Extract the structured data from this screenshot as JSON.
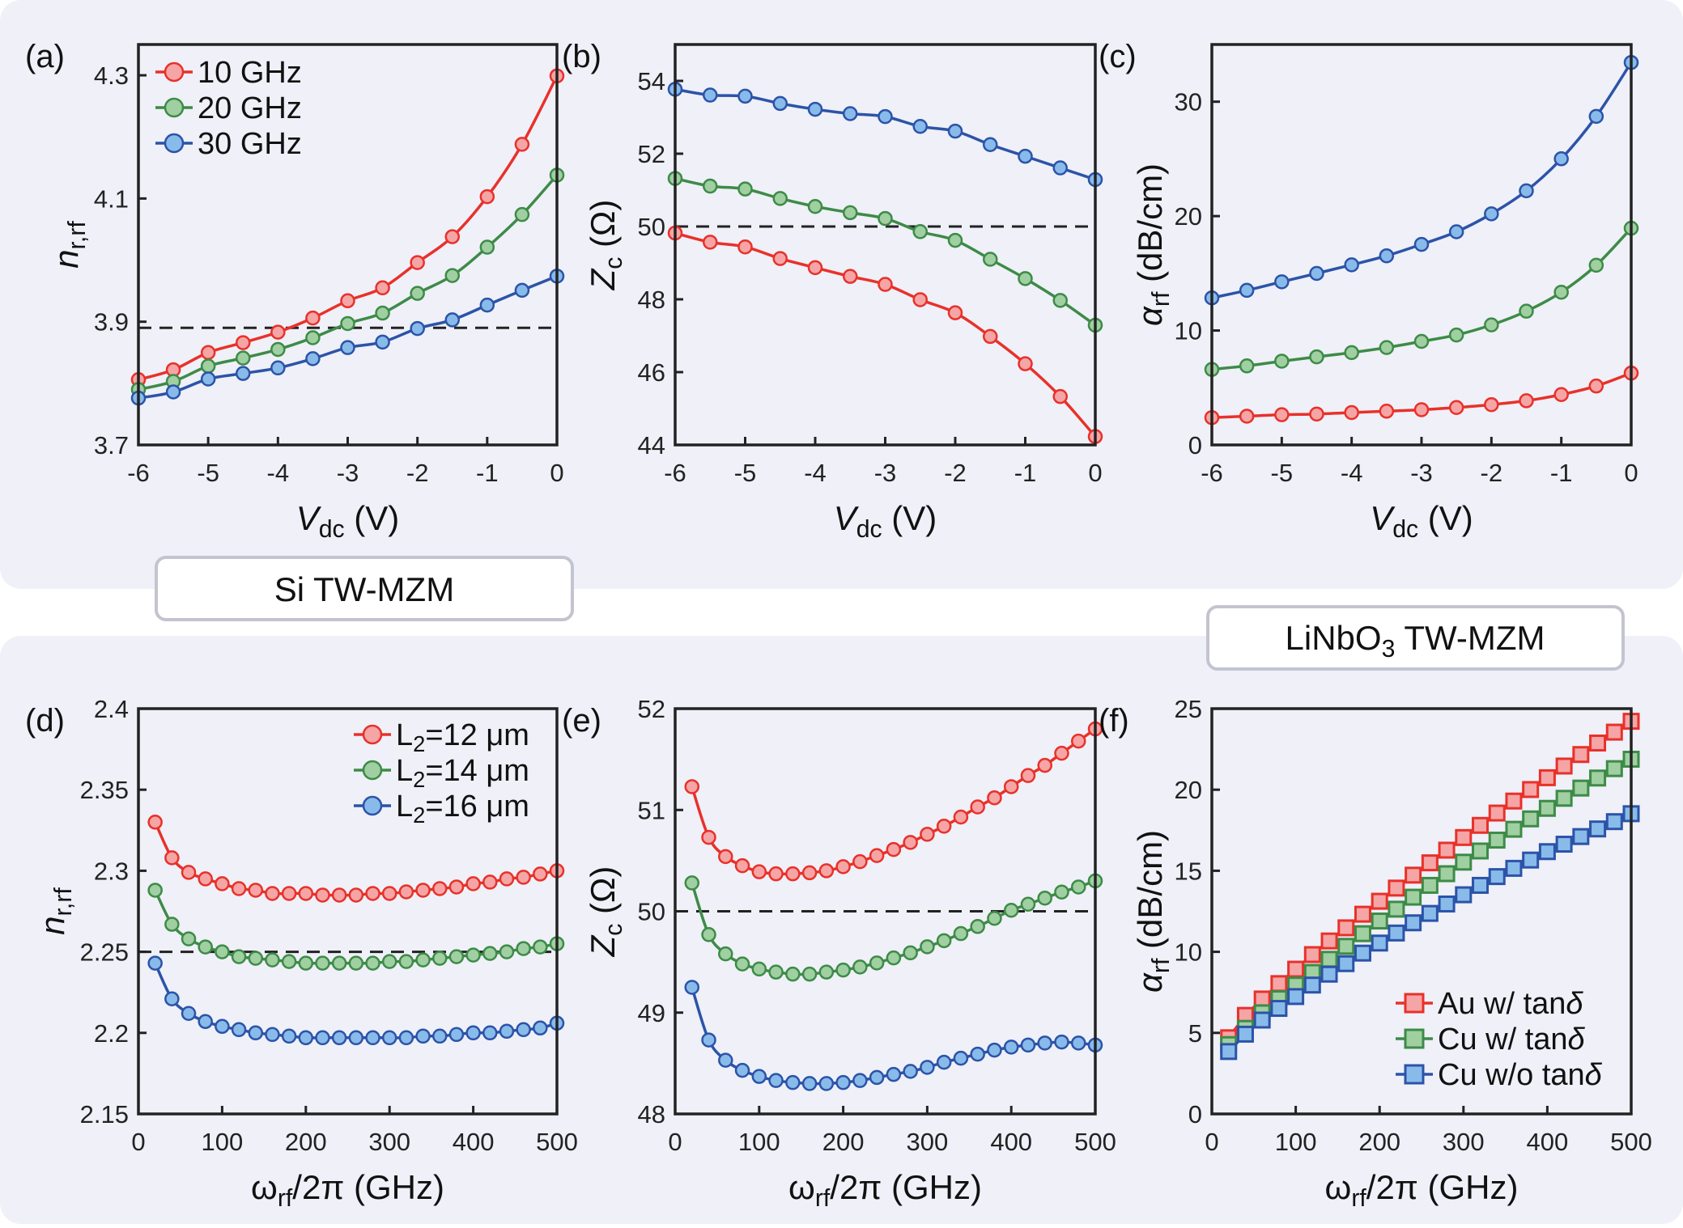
{
  "section_labels": {
    "top": [
      {
        "t": "Si TW-MZM"
      }
    ],
    "bottom": [
      {
        "t": "LiNbO"
      },
      {
        "t": "3",
        "sub": true
      },
      {
        "t": " TW-MZM"
      }
    ]
  },
  "colors": {
    "background_panel": "#eff0f8",
    "label_box_border": "#c3c4d0",
    "red_line": "#e8312a",
    "red_fill": "#f5a5a5",
    "green_line": "#3d8b47",
    "green_fill": "#a0cfa2",
    "blue_line": "#2c53a8",
    "blue_fill": "#88bbea"
  },
  "chart_data": [
    {
      "panel": "(a)",
      "type": "line",
      "marker": "circle",
      "xlabel": [
        {
          "t": "V",
          "i": true
        },
        {
          "t": "dc",
          "sub": true
        },
        {
          "t": " (V)"
        }
      ],
      "ylabel": [
        {
          "t": "n",
          "i": true
        },
        {
          "t": "r,rf",
          "sub": true
        }
      ],
      "xlim": [
        -6,
        0
      ],
      "ylim": [
        3.7,
        4.35
      ],
      "xticks": [
        -6,
        -5,
        -4,
        -3,
        -2,
        -1,
        0
      ],
      "xtick_labels": [
        "-6",
        "-5",
        "-4",
        "-3",
        "-2",
        "-1",
        "0"
      ],
      "yticks": [
        3.7,
        3.9,
        4.1,
        4.3
      ],
      "ytick_labels": [
        "3.7",
        "3.9",
        "4.1",
        "4.3"
      ],
      "reference_line": 3.89,
      "legend_placement": "top-left",
      "grid": false,
      "x": [
        -6,
        -5.5,
        -5,
        -4.5,
        -4,
        -3.5,
        -3,
        -2.5,
        -2,
        -1.5,
        -1,
        -0.5,
        0
      ],
      "series": [
        {
          "name": [
            {
              "t": "10 GHz"
            }
          ],
          "color": "red",
          "values": [
            3.806,
            3.822,
            3.85,
            3.866,
            3.883,
            3.906,
            3.934,
            3.955,
            3.996,
            4.038,
            4.103,
            4.188,
            4.299
          ]
        },
        {
          "name": [
            {
              "t": "20 GHz"
            }
          ],
          "color": "green",
          "values": [
            3.79,
            3.803,
            3.828,
            3.841,
            3.855,
            3.874,
            3.897,
            3.914,
            3.946,
            3.975,
            4.021,
            4.074,
            4.138
          ]
        },
        {
          "name": [
            {
              "t": "30 GHz"
            }
          ],
          "color": "blue",
          "values": [
            3.776,
            3.786,
            3.807,
            3.816,
            3.825,
            3.84,
            3.858,
            3.867,
            3.889,
            3.903,
            3.927,
            3.951,
            3.974
          ]
        }
      ]
    },
    {
      "panel": "(b)",
      "type": "line",
      "marker": "circle",
      "xlabel": [
        {
          "t": "V",
          "i": true
        },
        {
          "t": "dc",
          "sub": true
        },
        {
          "t": " (V)"
        }
      ],
      "ylabel": [
        {
          "t": "Z",
          "i": true
        },
        {
          "t": "c",
          "sub": true
        },
        {
          "t": " (Ω)"
        }
      ],
      "xlim": [
        -6,
        0
      ],
      "ylim": [
        44,
        55
      ],
      "xticks": [
        -6,
        -5,
        -4,
        -3,
        -2,
        -1,
        0
      ],
      "xtick_labels": [
        "-6",
        "-5",
        "-4",
        "-3",
        "-2",
        "-1",
        "0"
      ],
      "yticks": [
        44,
        46,
        48,
        50,
        52,
        54
      ],
      "ytick_labels": [
        "44",
        "46",
        "48",
        "50",
        "52",
        "54"
      ],
      "reference_line": 50,
      "grid": false,
      "x": [
        -6,
        -5.5,
        -5,
        -4.5,
        -4,
        -3.5,
        -3,
        -2.5,
        -2,
        -1.5,
        -1,
        -0.5,
        0
      ],
      "series": [
        {
          "color": "blue",
          "values": [
            53.77,
            53.61,
            53.58,
            53.38,
            53.22,
            53.1,
            53.02,
            52.75,
            52.62,
            52.25,
            51.93,
            51.61,
            51.29
          ]
        },
        {
          "color": "green",
          "values": [
            51.32,
            51.11,
            51.03,
            50.77,
            50.55,
            50.38,
            50.22,
            49.86,
            49.62,
            49.1,
            48.57,
            47.97,
            47.29
          ]
        },
        {
          "color": "red",
          "values": [
            49.82,
            49.57,
            49.44,
            49.12,
            48.87,
            48.63,
            48.41,
            47.99,
            47.63,
            46.98,
            46.23,
            45.33,
            44.23
          ]
        }
      ]
    },
    {
      "panel": "(c)",
      "type": "line",
      "marker": "circle",
      "xlabel": [
        {
          "t": "V",
          "i": true
        },
        {
          "t": "dc",
          "sub": true
        },
        {
          "t": " (V)"
        }
      ],
      "ylabel": [
        {
          "t": "α",
          "i": true
        },
        {
          "t": "rf",
          "sub": true
        },
        {
          "t": " (dB/cm)"
        }
      ],
      "xlim": [
        -6,
        0
      ],
      "ylim": [
        0,
        35
      ],
      "xticks": [
        -6,
        -5,
        -4,
        -3,
        -2,
        -1,
        0
      ],
      "xtick_labels": [
        "-6",
        "-5",
        "-4",
        "-3",
        "-2",
        "-1",
        "0"
      ],
      "yticks": [
        0,
        10,
        20,
        30
      ],
      "ytick_labels": [
        "0",
        "10",
        "20",
        "30"
      ],
      "grid": false,
      "x": [
        -6,
        -5.5,
        -5,
        -4.5,
        -4,
        -3.5,
        -3,
        -2.5,
        -2,
        -1.5,
        -1,
        -0.5,
        0
      ],
      "series": [
        {
          "color": "blue",
          "values": [
            12.85,
            13.51,
            14.26,
            14.99,
            15.74,
            16.53,
            17.53,
            18.63,
            20.2,
            22.21,
            25.01,
            28.72,
            33.43
          ]
        },
        {
          "color": "green",
          "values": [
            6.6,
            6.91,
            7.32,
            7.7,
            8.07,
            8.51,
            9.05,
            9.61,
            10.49,
            11.69,
            13.35,
            15.71,
            18.94
          ]
        },
        {
          "color": "red",
          "values": [
            2.39,
            2.51,
            2.64,
            2.7,
            2.83,
            2.95,
            3.08,
            3.27,
            3.52,
            3.86,
            4.4,
            5.15,
            6.28
          ]
        }
      ]
    },
    {
      "panel": "(d)",
      "type": "line",
      "marker": "circle",
      "xlabel": [
        {
          "t": "ω"
        },
        {
          "t": "rf",
          "sub": true
        },
        {
          "t": "/2π (GHz)"
        }
      ],
      "ylabel": [
        {
          "t": "n",
          "i": true
        },
        {
          "t": "r,rf",
          "sub": true
        }
      ],
      "xlim": [
        0,
        500
      ],
      "ylim": [
        2.15,
        2.4
      ],
      "xticks": [
        0,
        100,
        200,
        300,
        400,
        500
      ],
      "xtick_labels": [
        "0",
        "100",
        "200",
        "300",
        "400",
        "500"
      ],
      "yticks": [
        2.15,
        2.2,
        2.25,
        2.3,
        2.35,
        2.4
      ],
      "ytick_labels": [
        "2.15",
        "2.2",
        "2.25",
        "2.3",
        "2.35",
        "2.4"
      ],
      "reference_line": 2.25,
      "legend_placement": "top-right",
      "grid": false,
      "x": [
        20,
        40,
        60,
        80,
        100,
        120,
        140,
        160,
        180,
        200,
        220,
        240,
        260,
        280,
        300,
        320,
        340,
        360,
        380,
        400,
        420,
        440,
        460,
        480,
        500
      ],
      "series": [
        {
          "name": [
            {
              "t": "L"
            },
            {
              "t": "2",
              "sub": true
            },
            {
              "t": "=12 μm"
            }
          ],
          "color": "red",
          "values": [
            2.33,
            2.308,
            2.299,
            2.295,
            2.292,
            2.289,
            2.288,
            2.286,
            2.286,
            2.286,
            2.285,
            2.285,
            2.285,
            2.286,
            2.286,
            2.287,
            2.288,
            2.289,
            2.29,
            2.292,
            2.293,
            2.295,
            2.296,
            2.298,
            2.3
          ]
        },
        {
          "name": [
            {
              "t": "L"
            },
            {
              "t": "2",
              "sub": true
            },
            {
              "t": "=14 μm"
            }
          ],
          "color": "green",
          "values": [
            2.288,
            2.267,
            2.258,
            2.253,
            2.25,
            2.247,
            2.246,
            2.245,
            2.244,
            2.243,
            2.243,
            2.243,
            2.243,
            2.243,
            2.244,
            2.244,
            2.245,
            2.246,
            2.247,
            2.248,
            2.249,
            2.25,
            2.252,
            2.253,
            2.255
          ]
        },
        {
          "name": [
            {
              "t": "L"
            },
            {
              "t": "2",
              "sub": true
            },
            {
              "t": "=16 μm"
            }
          ],
          "color": "blue",
          "values": [
            2.243,
            2.221,
            2.212,
            2.207,
            2.204,
            2.202,
            2.2,
            2.199,
            2.198,
            2.197,
            2.197,
            2.197,
            2.197,
            2.197,
            2.197,
            2.197,
            2.198,
            2.198,
            2.199,
            2.2,
            2.2,
            2.201,
            2.202,
            2.203,
            2.206
          ]
        }
      ]
    },
    {
      "panel": "(e)",
      "type": "line",
      "marker": "circle",
      "xlabel": [
        {
          "t": "ω"
        },
        {
          "t": "rf",
          "sub": true
        },
        {
          "t": "/2π (GHz)"
        }
      ],
      "ylabel": [
        {
          "t": "Z",
          "i": true
        },
        {
          "t": "c",
          "sub": true
        },
        {
          "t": " (Ω)"
        }
      ],
      "xlim": [
        0,
        500
      ],
      "ylim": [
        48,
        52
      ],
      "xticks": [
        0,
        100,
        200,
        300,
        400,
        500
      ],
      "xtick_labels": [
        "0",
        "100",
        "200",
        "300",
        "400",
        "500"
      ],
      "yticks": [
        48,
        49,
        50,
        51,
        52
      ],
      "ytick_labels": [
        "48",
        "49",
        "50",
        "51",
        "52"
      ],
      "reference_line": 50,
      "grid": false,
      "x": [
        20,
        40,
        60,
        80,
        100,
        120,
        140,
        160,
        180,
        200,
        220,
        240,
        260,
        280,
        300,
        320,
        340,
        360,
        380,
        400,
        420,
        440,
        460,
        480,
        500
      ],
      "series": [
        {
          "color": "red",
          "values": [
            51.23,
            50.73,
            50.54,
            50.45,
            50.39,
            50.37,
            50.37,
            50.38,
            50.4,
            50.44,
            50.49,
            50.55,
            50.61,
            50.68,
            50.76,
            50.84,
            50.93,
            51.03,
            51.12,
            51.23,
            51.34,
            51.44,
            51.56,
            51.68,
            51.8
          ]
        },
        {
          "color": "green",
          "values": [
            50.28,
            49.77,
            49.58,
            49.48,
            49.43,
            49.4,
            49.38,
            49.38,
            49.4,
            49.42,
            49.45,
            49.49,
            49.54,
            49.59,
            49.65,
            49.71,
            49.78,
            49.85,
            49.93,
            50.01,
            50.07,
            50.13,
            50.19,
            50.24,
            50.3
          ]
        },
        {
          "color": "blue",
          "values": [
            49.25,
            48.73,
            48.53,
            48.43,
            48.37,
            48.33,
            48.31,
            48.3,
            48.3,
            48.31,
            48.33,
            48.36,
            48.39,
            48.42,
            48.46,
            48.51,
            48.55,
            48.59,
            48.63,
            48.66,
            48.68,
            48.7,
            48.71,
            48.7,
            48.68
          ]
        }
      ]
    },
    {
      "panel": "(f)",
      "type": "line",
      "marker": "square",
      "xlabel": [
        {
          "t": "ω"
        },
        {
          "t": "rf",
          "sub": true
        },
        {
          "t": "/2π (GHz)"
        }
      ],
      "ylabel": [
        {
          "t": "α",
          "i": true
        },
        {
          "t": "rf",
          "sub": true
        },
        {
          "t": " (dB/cm)"
        }
      ],
      "xlim": [
        0,
        500
      ],
      "ylim": [
        0,
        25
      ],
      "xticks": [
        0,
        100,
        200,
        300,
        400,
        500
      ],
      "xtick_labels": [
        "0",
        "100",
        "200",
        "300",
        "400",
        "500"
      ],
      "yticks": [
        0,
        5,
        10,
        15,
        20,
        25
      ],
      "ytick_labels": [
        "0",
        "5",
        "10",
        "15",
        "20",
        "25"
      ],
      "legend_placement": "bottom-right",
      "grid": false,
      "x": [
        20,
        40,
        60,
        80,
        100,
        120,
        140,
        160,
        180,
        200,
        220,
        240,
        260,
        280,
        300,
        320,
        340,
        360,
        380,
        400,
        420,
        440,
        460,
        480,
        500
      ],
      "series": [
        {
          "name": [
            {
              "t": "Au w/ tan"
            },
            {
              "t": "δ",
              "i": true
            }
          ],
          "color": "red",
          "values": [
            4.7,
            6.08,
            7.09,
            8.04,
            8.93,
            9.83,
            10.67,
            11.48,
            12.32,
            13.12,
            13.93,
            14.73,
            15.49,
            16.27,
            17.05,
            17.8,
            18.56,
            19.3,
            20.01,
            20.74,
            21.46,
            22.17,
            22.88,
            23.55,
            24.22
          ]
        },
        {
          "name": [
            {
              "t": "Cu w/ tan"
            },
            {
              "t": "δ",
              "i": true
            }
          ],
          "color": "green",
          "values": [
            4.28,
            5.28,
            6.24,
            7.11,
            7.95,
            8.73,
            9.54,
            10.34,
            11.12,
            11.9,
            12.63,
            13.37,
            14.1,
            14.82,
            15.53,
            16.22,
            16.89,
            17.56,
            18.2,
            18.85,
            19.47,
            20.1,
            20.72,
            21.3,
            21.88
          ]
        },
        {
          "name": [
            {
              "t": "Cu w/o tan"
            },
            {
              "t": "δ",
              "i": true
            }
          ],
          "color": "blue",
          "values": [
            3.85,
            4.92,
            5.79,
            6.51,
            7.24,
            7.95,
            8.62,
            9.27,
            9.92,
            10.54,
            11.16,
            11.79,
            12.37,
            12.95,
            13.52,
            14.1,
            14.64,
            15.15,
            15.66,
            16.18,
            16.64,
            17.11,
            17.58,
            18.03,
            18.52
          ]
        }
      ]
    }
  ]
}
